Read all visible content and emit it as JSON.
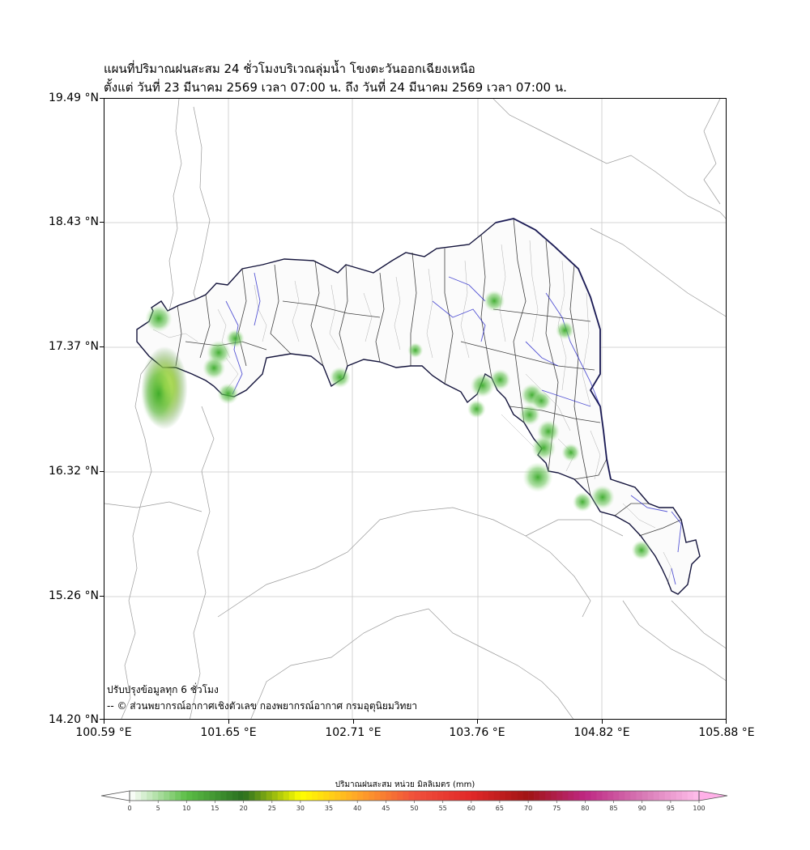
{
  "title": {
    "line1": "แผนที่ปริมาณฝนสะสม 24 ชั่วโมงบริเวณลุ่มน้ำ โขงตะวันออกเฉียงเหนือ",
    "line2": "ตั้งแต่ วันที่ 23 มีนาคม 2569 เวลา 07:00 น. ถึง วันที่ 24 มีนาคม 2569 เวลา 07:00 น."
  },
  "axes": {
    "lat_ticks": [
      "19.49 °N",
      "18.43 °N",
      "17.37 °N",
      "16.32 °N",
      "15.26 °N",
      "14.20 °N"
    ],
    "lon_ticks": [
      "100.59 °E",
      "101.65 °E",
      "102.71 °E",
      "103.76 °E",
      "104.82 °E",
      "105.88 °E"
    ],
    "lat_range": [
      14.2,
      19.49
    ],
    "lon_range": [
      100.59,
      105.88
    ]
  },
  "notes": {
    "update": "ปรับปรุงข้อมูลทุก 6 ชั่วโมง",
    "credit": "-- © ส่วนพยากรณ์อากาศเชิงตัวเลข กองพยากรณ์อากาศ กรมอุตุนิยมวิทยา"
  },
  "colorbar": {
    "title": "ปริมาณฝนสะสม หน่วย มิลลิเมตร (mm)",
    "labels": [
      "0",
      "5",
      "10",
      "15",
      "20",
      "25",
      "30",
      "35",
      "40",
      "45",
      "50",
      "55",
      "60",
      "65",
      "70",
      "75",
      "80",
      "85",
      "90",
      "95",
      "100"
    ],
    "min": 0,
    "max": 100
  },
  "rain_spots": [
    {
      "lon": 101.1,
      "lat": 17.03,
      "mm": 25
    },
    {
      "lon": 101.05,
      "lat": 16.98,
      "mm": 18
    },
    {
      "lon": 101.05,
      "lat": 17.62,
      "mm": 12
    },
    {
      "lon": 101.56,
      "lat": 17.33,
      "mm": 10
    },
    {
      "lon": 101.52,
      "lat": 17.2,
      "mm": 9
    },
    {
      "lon": 101.64,
      "lat": 16.98,
      "mm": 8
    },
    {
      "lon": 101.7,
      "lat": 17.45,
      "mm": 6
    },
    {
      "lon": 102.59,
      "lat": 17.12,
      "mm": 8
    },
    {
      "lon": 103.9,
      "lat": 17.77,
      "mm": 8
    },
    {
      "lon": 103.8,
      "lat": 17.05,
      "mm": 10
    },
    {
      "lon": 103.95,
      "lat": 17.1,
      "mm": 8
    },
    {
      "lon": 103.75,
      "lat": 16.85,
      "mm": 6
    },
    {
      "lon": 104.22,
      "lat": 16.97,
      "mm": 9
    },
    {
      "lon": 104.2,
      "lat": 16.8,
      "mm": 8
    },
    {
      "lon": 104.36,
      "lat": 16.66,
      "mm": 9
    },
    {
      "lon": 104.32,
      "lat": 16.52,
      "mm": 10
    },
    {
      "lon": 104.27,
      "lat": 16.27,
      "mm": 14
    },
    {
      "lon": 104.55,
      "lat": 16.48,
      "mm": 6
    },
    {
      "lon": 104.3,
      "lat": 16.92,
      "mm": 7
    },
    {
      "lon": 104.5,
      "lat": 17.52,
      "mm": 6
    },
    {
      "lon": 104.82,
      "lat": 16.1,
      "mm": 10
    },
    {
      "lon": 104.65,
      "lat": 16.06,
      "mm": 7
    },
    {
      "lon": 105.15,
      "lat": 15.65,
      "mm": 7
    },
    {
      "lon": 103.23,
      "lat": 17.35,
      "mm": 4
    }
  ]
}
